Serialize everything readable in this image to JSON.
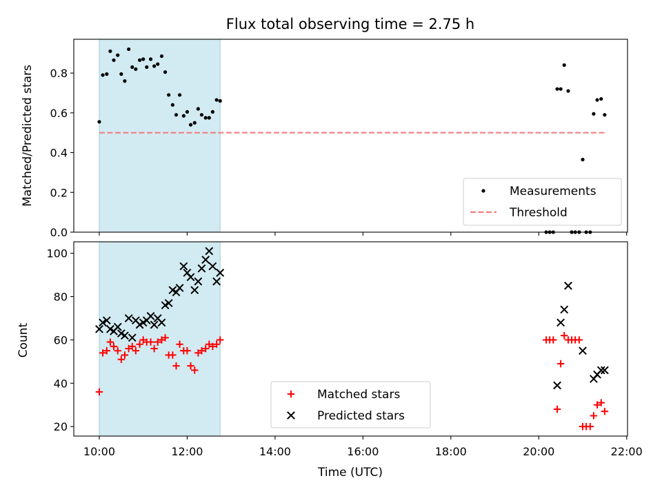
{
  "chart_data": {
    "title": "Flux total observing time = 2.75 h",
    "xlabel": "Time (UTC)",
    "x_unit": "hour",
    "xlim": [
      9.42,
      22.02
    ],
    "x_ticks": [
      10,
      12,
      14,
      16,
      18,
      20,
      22
    ],
    "x_tick_labels": [
      "10:00",
      "12:00",
      "14:00",
      "16:00",
      "18:00",
      "20:00",
      "22:00"
    ],
    "shaded_region": {
      "x": [
        10.0,
        12.75
      ],
      "color": "#add8e6"
    },
    "panels": [
      {
        "type": "scatter",
        "ylabel": "Matched/Predicted stars",
        "ylim": [
          0,
          0.97
        ],
        "y_ticks": [
          0.0,
          0.2,
          0.4,
          0.6,
          0.8
        ],
        "y_tick_labels": [
          "0.0",
          "0.2",
          "0.4",
          "0.6",
          "0.8"
        ],
        "legend_position": "lower-right",
        "series": [
          {
            "name": "Measurements",
            "kind": "scatter",
            "marker": "dot",
            "color": "#000000",
            "x": [
              10.0,
              10.08,
              10.17,
              10.25,
              10.33,
              10.42,
              10.5,
              10.58,
              10.67,
              10.75,
              10.83,
              10.92,
              11.0,
              11.08,
              11.17,
              11.25,
              11.33,
              11.42,
              11.5,
              11.58,
              11.67,
              11.75,
              11.83,
              11.92,
              12.0,
              12.08,
              12.17,
              12.25,
              12.33,
              12.42,
              12.5,
              12.58,
              12.67,
              12.75,
              20.17,
              20.25,
              20.33,
              20.42,
              20.5,
              20.58,
              20.67,
              20.75,
              20.83,
              20.92,
              21.0,
              21.08,
              21.17,
              21.25,
              21.33,
              21.42,
              21.5
            ],
            "y": [
              0.555,
              0.79,
              0.795,
              0.91,
              0.865,
              0.89,
              0.795,
              0.76,
              0.92,
              0.83,
              0.82,
              0.865,
              0.87,
              0.83,
              0.87,
              0.835,
              0.845,
              0.885,
              0.805,
              0.69,
              0.64,
              0.59,
              0.69,
              0.585,
              0.605,
              0.54,
              0.55,
              0.62,
              0.59,
              0.575,
              0.575,
              0.605,
              0.665,
              0.66,
              0.0,
              0.0,
              0.0,
              0.72,
              0.72,
              0.84,
              0.71,
              0.0,
              0.0,
              0.0,
              0.365,
              0.0,
              0.0,
              0.595,
              0.665,
              0.67,
              0.59
            ]
          },
          {
            "name": "Threshold",
            "kind": "line",
            "style": "dashed",
            "color": "#f08080",
            "x": [
              10.0,
              21.5
            ],
            "y": [
              0.5,
              0.5
            ]
          }
        ]
      },
      {
        "type": "scatter",
        "ylabel": "Count",
        "ylim": [
          15.6,
          105.3
        ],
        "y_ticks": [
          20,
          40,
          60,
          80,
          100
        ],
        "y_tick_labels": [
          "20",
          "40",
          "60",
          "80",
          "100"
        ],
        "legend_position": "lower-center",
        "series": [
          {
            "name": "Matched stars",
            "kind": "scatter",
            "marker": "plus",
            "color": "#ff0000",
            "x": [
              10.0,
              10.08,
              10.17,
              10.25,
              10.33,
              10.42,
              10.5,
              10.58,
              10.67,
              10.75,
              10.83,
              10.92,
              11.0,
              11.08,
              11.17,
              11.25,
              11.33,
              11.42,
              11.5,
              11.58,
              11.67,
              11.75,
              11.83,
              11.92,
              12.0,
              12.08,
              12.17,
              12.25,
              12.33,
              12.42,
              12.5,
              12.58,
              12.67,
              12.75,
              20.17,
              20.25,
              20.33,
              20.42,
              20.5,
              20.58,
              20.67,
              20.75,
              20.83,
              20.92,
              21.0,
              21.08,
              21.17,
              21.25,
              21.33,
              21.42,
              21.5
            ],
            "y": [
              36,
              54,
              55,
              59,
              57,
              55,
              51,
              53,
              56,
              57,
              55,
              58,
              60,
              59,
              59,
              56,
              59,
              60,
              61,
              53,
              53,
              48,
              58,
              55,
              55,
              48,
              46,
              54,
              55,
              56,
              58,
              57,
              58,
              60,
              60,
              60,
              60,
              28,
              49,
              62,
              60,
              60,
              60,
              60,
              20,
              20,
              20,
              25,
              30,
              31,
              27
            ]
          },
          {
            "name": "Predicted stars",
            "kind": "scatter",
            "marker": "x",
            "color": "#000000",
            "x": [
              10.0,
              10.08,
              10.17,
              10.25,
              10.33,
              10.42,
              10.5,
              10.58,
              10.67,
              10.75,
              10.83,
              10.92,
              11.0,
              11.08,
              11.17,
              11.25,
              11.33,
              11.42,
              11.5,
              11.58,
              11.67,
              11.75,
              11.83,
              11.92,
              12.0,
              12.08,
              12.17,
              12.25,
              12.33,
              12.42,
              12.5,
              12.58,
              12.67,
              12.75,
              20.42,
              20.5,
              20.58,
              20.67,
              21.0,
              21.25,
              21.33,
              21.42,
              21.5
            ],
            "y": [
              65,
              68,
              69,
              65,
              64,
              66,
              63,
              62,
              70,
              61,
              69,
              67,
              68,
              69,
              71,
              67,
              70,
              68,
              76,
              77,
              83,
              82,
              84,
              94,
              91,
              89,
              83,
              87,
              93,
              97,
              101,
              94,
              87,
              91,
              39,
              68,
              74,
              85,
              55,
              42,
              44,
              46,
              46
            ]
          }
        ]
      }
    ]
  }
}
